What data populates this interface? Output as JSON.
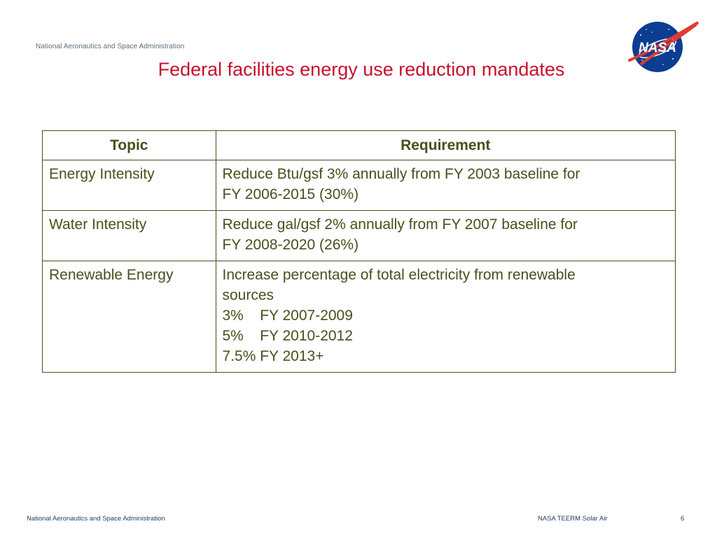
{
  "header": {
    "org": "National Aeronautics and Space Administration",
    "title": "Federal facilities energy use reduction mandates",
    "logo_text": "NASA",
    "logo_icon": "nasa-meatball-logo"
  },
  "table": {
    "headers": [
      "Topic",
      "Requirement"
    ],
    "rows": [
      {
        "topic": "Energy Intensity",
        "requirement": [
          "Reduce Btu/gsf 3% annually from FY 2003 baseline for",
          "FY 2006-2015 (30%)"
        ]
      },
      {
        "topic": "Water Intensity",
        "requirement": [
          "Reduce gal/gsf 2% annually from FY 2007 baseline for",
          "FY 2008-2020 (26%)"
        ]
      },
      {
        "topic": "Renewable Energy",
        "requirement": [
          "Increase percentage of total electricity from renewable",
          "sources",
          "3%    FY 2007-2009",
          "5%    FY 2010-2012",
          "7.5% FY 2013+"
        ]
      }
    ]
  },
  "footer": {
    "left": "National Aeronautics and Space Administration",
    "center": "NASA TEERM Solar Air",
    "page": "6"
  },
  "colors": {
    "title": "#c8102e",
    "table_text": "#4d4d1e",
    "logo_blue": "#0b3d91",
    "logo_red": "#e03c31"
  }
}
